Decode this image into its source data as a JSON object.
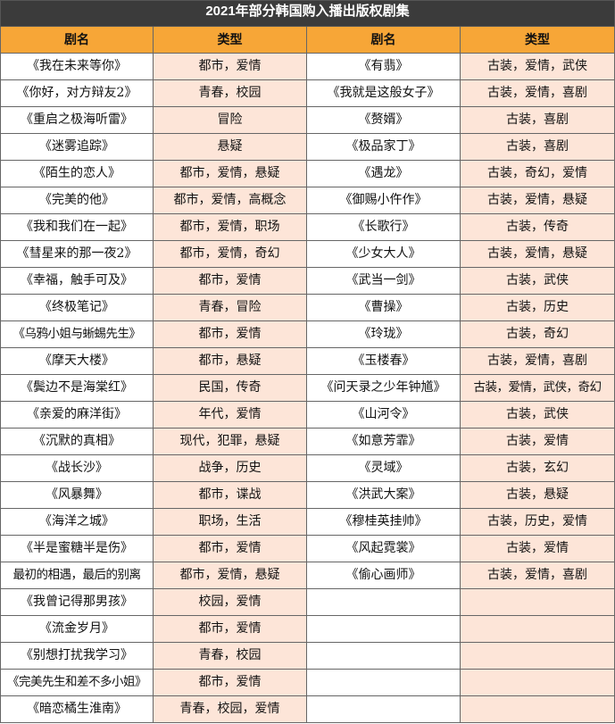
{
  "header": {
    "title": "2021年部分韩国购入播出版权剧集",
    "columns": [
      "剧名",
      "类型",
      "剧名",
      "类型"
    ]
  },
  "table": {
    "left": [
      [
        "《我在未来等你》",
        "都市，爱情"
      ],
      [
        "《你好，对方辩友2》",
        "青春，校园"
      ],
      [
        "《重启之极海听雷》",
        "冒险"
      ],
      [
        "《迷雾追踪》",
        "悬疑"
      ],
      [
        "《陌生的恋人》",
        "都市，爱情，悬疑"
      ],
      [
        "《完美的他》",
        "都市，爱情，高概念"
      ],
      [
        "《我和我们在一起》",
        "都市，爱情，职场"
      ],
      [
        "《彗星来的那一夜2》",
        "都市，爱情，奇幻"
      ],
      [
        "《幸福，触手可及》",
        "都市，爱情"
      ],
      [
        "《终极笔记》",
        "青春，冒险"
      ],
      [
        "《乌鸦小姐与蜥蜴先生》",
        "都市，爱情"
      ],
      [
        "《摩天大楼》",
        "都市，悬疑"
      ],
      [
        "《鬓边不是海棠红》",
        "民国，传奇"
      ],
      [
        "《亲爱的麻洋街》",
        "年代，爱情"
      ],
      [
        "《沉默的真相》",
        "现代，犯罪，悬疑"
      ],
      [
        "《战长沙》",
        "战争，历史"
      ],
      [
        "《风暴舞》",
        "都市，谍战"
      ],
      [
        "《海洋之城》",
        "职场，生活"
      ],
      [
        "《半是蜜糖半是伤》",
        "都市，爱情"
      ],
      [
        "最初的相遇，最后的别离",
        "都市，爱情，悬疑"
      ],
      [
        "《我曾记得那男孩》",
        "校园，爱情"
      ],
      [
        "《流金岁月》",
        "都市，爱情"
      ],
      [
        "《别想打扰我学习》",
        "青春，校园"
      ],
      [
        "《完美先生和差不多小姐》",
        "都市，爱情"
      ],
      [
        "《暗恋橘生淮南》",
        "青春，校园，爱情"
      ]
    ],
    "right": [
      [
        "《有翡》",
        "古装，爱情，武侠"
      ],
      [
        "《我就是这般女子》",
        "古装，爱情，喜剧"
      ],
      [
        "《赘婿》",
        "古装，喜剧"
      ],
      [
        "《极品家丁》",
        "古装，喜剧"
      ],
      [
        "《遇龙》",
        "古装，奇幻，爱情"
      ],
      [
        "《御赐小仵作》",
        "古装，爱情，悬疑"
      ],
      [
        "《长歌行》",
        "古装，传奇"
      ],
      [
        "《少女大人》",
        "古装，爱情，悬疑"
      ],
      [
        "《武当一剑》",
        "古装，武侠"
      ],
      [
        "《曹操》",
        "古装，历史"
      ],
      [
        "《玲珑》",
        "古装，奇幻"
      ],
      [
        "《玉楼春》",
        "古装，爱情，喜剧"
      ],
      [
        "《问天录之少年钟馗》",
        "古装，爱情，武侠，奇幻"
      ],
      [
        "《山河令》",
        "古装，武侠"
      ],
      [
        "《如意芳霏》",
        "古装，爱情"
      ],
      [
        "《灵域》",
        "古装，玄幻"
      ],
      [
        "《洪武大案》",
        "古装，悬疑"
      ],
      [
        "《穆桂英挂帅》",
        "古装，历史，爱情"
      ],
      [
        "《风起霓裳》",
        "古装，爱情"
      ],
      [
        "《偷心画师》",
        "古装，爱情，喜剧"
      ]
    ]
  }
}
